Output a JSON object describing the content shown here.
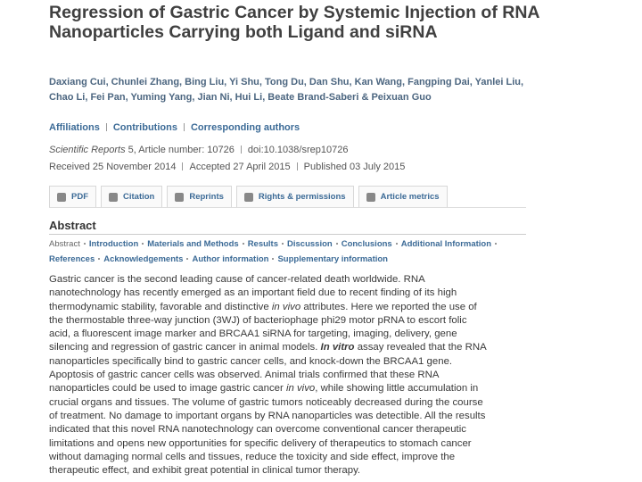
{
  "header": {
    "title": "Regression of Gastric Cancer by Systemic Injection of RNA Nanoparticles Carrying both Ligand and siRNA",
    "authors": "Daxiang Cui, Chunlei Zhang, Bing Liu, Yi Shu, Tong Du, Dan Shu, Kan Wang, Fangping Dai, Yanlei Liu, Chao Li, Fei Pan, Yuming Yang, Jian Ni, Hui Li, Beate Brand-Saberi & Peixuan Guo",
    "links": [
      "Affiliations",
      "Contributions",
      "Corresponding authors"
    ],
    "journal": "Scientific Reports",
    "citation": "5, Article number: 10726",
    "doi": "doi:10.1038/srep10726",
    "dates": [
      "Received 25 November 2014",
      "Accepted 27 April 2015",
      "Published 03 July 2015"
    ]
  },
  "tabs": [
    "PDF",
    "Citation",
    "Reprints",
    "Rights & permissions",
    "Article metrics"
  ],
  "abstract": {
    "heading": "Abstract",
    "nav": [
      "Abstract",
      "Introduction",
      "Materials and Methods",
      "Results",
      "Discussion",
      "Conclusions",
      "Additional Information",
      "References",
      "Acknowledgements",
      "Author information",
      "Supplementary information"
    ],
    "lines": [
      [
        "Gastric cancer is the second leading cause of cancer-related death worldwide. RNA"
      ],
      [
        "nanotechnology has recently emerged as an important field due to recent finding of its high"
      ],
      [
        "thermodynamic stability, favorable and distinctive ",
        {
          "text": "in vivo",
          "style": "italic"
        },
        " attributes. Here we reported the use of"
      ],
      [
        "the thermostable three-way junction (3WJ) of bacteriophage phi29 motor pRNA to escort folic"
      ],
      [
        "acid, a fluorescent image marker and BRCAA1 siRNA for targeting, imaging, delivery, gene"
      ],
      [
        "silencing and regression of gastric cancer in animal models. ",
        {
          "text": "In vitro",
          "style": "bold-italic"
        },
        " assay revealed that the RNA"
      ],
      [
        "nanoparticles specifically bind to gastric cancer cells, and knock-down the BRCAA1 gene."
      ],
      [
        "Apoptosis of gastric cancer cells was observed. Animal trials confirmed that these RNA"
      ],
      [
        "nanoparticles could be used to image gastric cancer ",
        {
          "text": "in vivo",
          "style": "italic"
        },
        ", while showing little accumulation in"
      ],
      [
        "crucial organs and tissues. The volume of gastric tumors noticeably decreased during the course"
      ],
      [
        "of treatment. No damage to important organs by RNA nanoparticles was detectible. All the results"
      ],
      [
        "indicated that this novel RNA nanotechnology can overcome conventional cancer therapeutic"
      ],
      [
        "limitations and opens new opportunities for specific delivery of therapeutics to stomach cancer"
      ],
      [
        "without damaging normal cells and tissues, reduce the toxicity and side effect, improve the"
      ],
      [
        "therapeutic effect, and exhibit great potential in clinical tumor therapy."
      ]
    ]
  }
}
